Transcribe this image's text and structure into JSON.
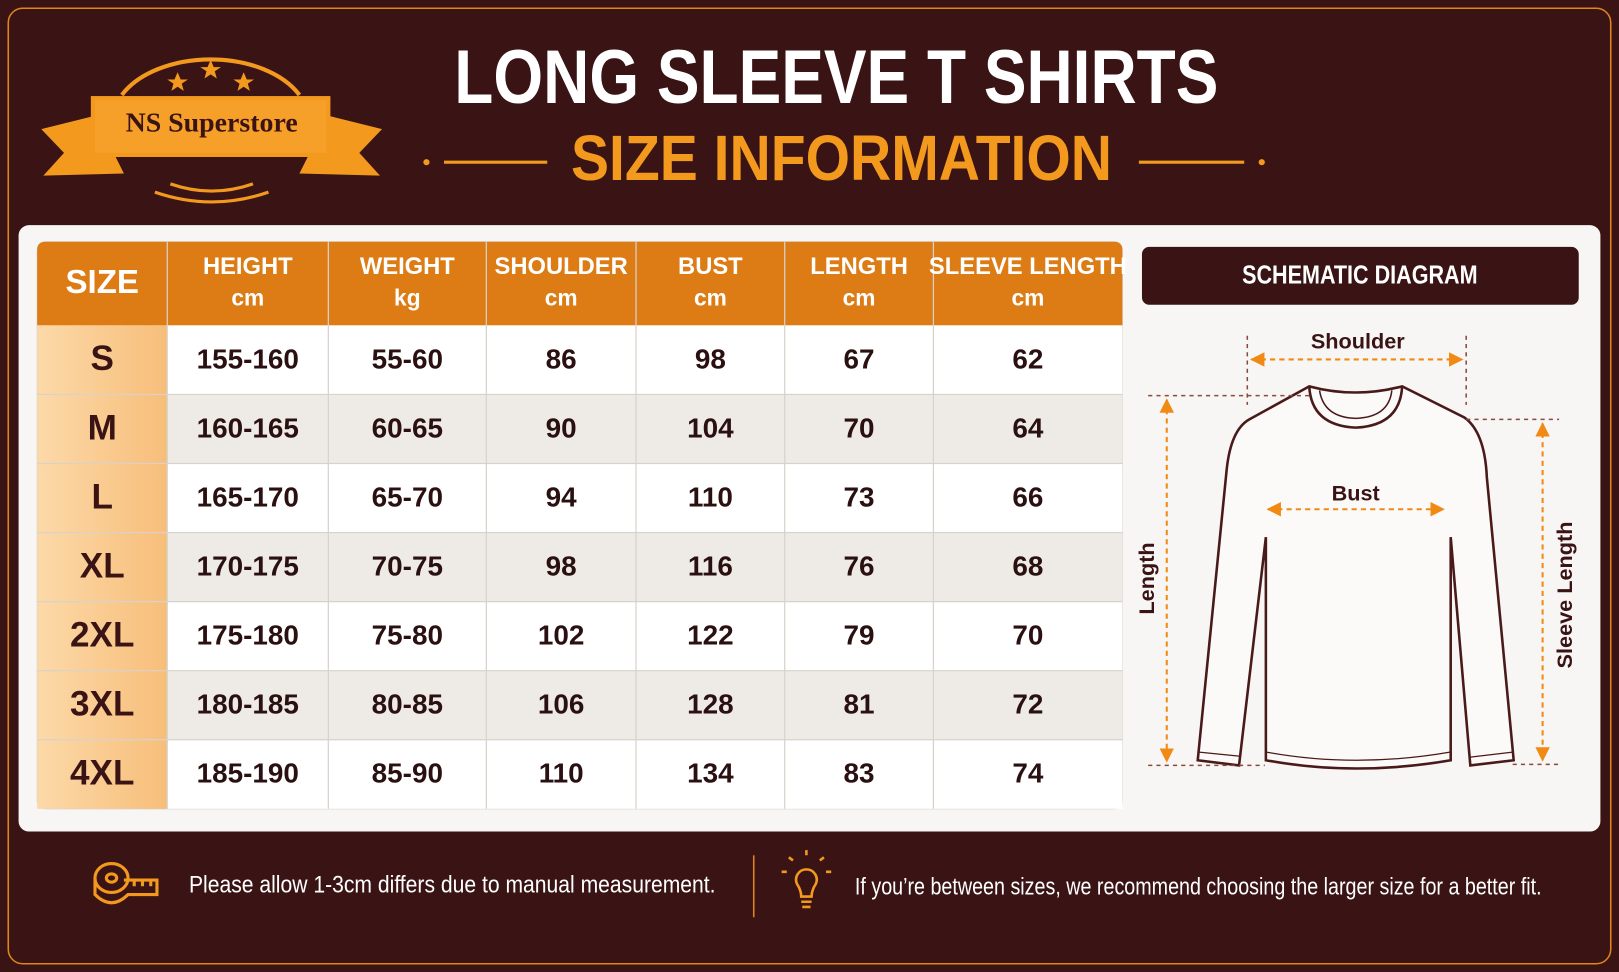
{
  "header": {
    "brand": "NS Superstore",
    "title": "LONG SLEEVE T SHIRTS",
    "subtitle": "SIZE INFORMATION"
  },
  "table": {
    "columns": [
      {
        "label": "SIZE"
      },
      {
        "label": "HEIGHT",
        "unit": "cm"
      },
      {
        "label": "WEIGHT",
        "unit": "kg"
      },
      {
        "label": "SHOULDER",
        "unit": "cm"
      },
      {
        "label": "BUST",
        "unit": "cm"
      },
      {
        "label": "LENGTH",
        "unit": "cm"
      },
      {
        "label": "SLEEVE LENGTH",
        "unit": "cm"
      }
    ],
    "rows": [
      [
        "S",
        "155-160",
        "55-60",
        "86",
        "98",
        "67",
        "62"
      ],
      [
        "M",
        "160-165",
        "60-65",
        "90",
        "104",
        "70",
        "64"
      ],
      [
        "L",
        "165-170",
        "65-70",
        "94",
        "110",
        "73",
        "66"
      ],
      [
        "XL",
        "170-175",
        "70-75",
        "98",
        "116",
        "76",
        "68"
      ],
      [
        "2XL",
        "175-180",
        "75-80",
        "102",
        "122",
        "79",
        "70"
      ],
      [
        "3XL",
        "180-185",
        "80-85",
        "106",
        "128",
        "81",
        "72"
      ],
      [
        "4XL",
        "185-190",
        "85-90",
        "110",
        "134",
        "83",
        "74"
      ]
    ]
  },
  "diagram": {
    "title": "SCHEMATIC DIAGRAM",
    "labels": {
      "shoulder": "Shoulder",
      "bust": "Bust",
      "length": "Length",
      "sleeve_length": "Sleeve Length"
    }
  },
  "footer": {
    "notes": [
      "Please allow 1-3cm differs due to manual measurement.",
      "If you’re between sizes, we recommend choosing the larger size for a better fit."
    ]
  }
}
